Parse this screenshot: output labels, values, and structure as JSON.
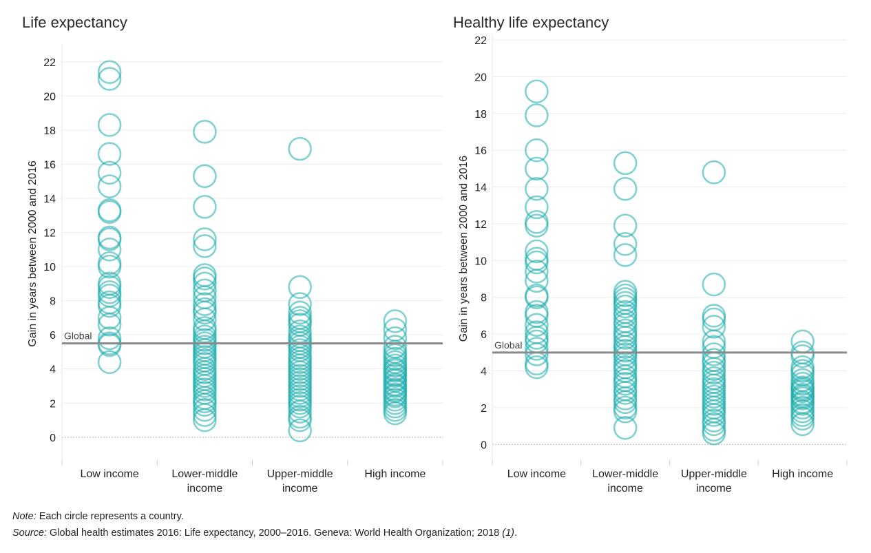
{
  "chart_data": [
    {
      "type": "scatter",
      "title": "Life expectancy",
      "ylabel": "Gain in years between 2000 and 2016",
      "xlabel": "",
      "categories": [
        "Low income",
        "Lower-middle income",
        "Upper-middle income",
        "High income"
      ],
      "ylim": [
        -1.5,
        23
      ],
      "yticks": [
        0,
        2,
        4,
        6,
        8,
        10,
        12,
        14,
        16,
        18,
        20,
        22
      ],
      "grid": true,
      "reference_line": {
        "label": "Global",
        "value": 5.5
      },
      "marker_color": "#1aacac",
      "series": [
        {
          "category": "Low income",
          "values": [
            21.4,
            21.0,
            18.3,
            16.6,
            15.5,
            14.7,
            13.3,
            13.2,
            11.7,
            11.6,
            11.0,
            10.2,
            10.0,
            9.0,
            8.8,
            8.5,
            8.3,
            7.9,
            7.7,
            7.0,
            6.6,
            5.8,
            5.5,
            5.4,
            4.4
          ]
        },
        {
          "category": "Lower-middle income",
          "values": [
            17.9,
            15.3,
            13.5,
            11.6,
            11.2,
            9.5,
            9.3,
            9.0,
            8.6,
            8.2,
            7.8,
            7.5,
            7.3,
            6.9,
            6.4,
            6.2,
            5.9,
            5.7,
            5.5,
            5.3,
            5.1,
            4.9,
            4.7,
            4.5,
            4.3,
            4.0,
            3.8,
            3.6,
            3.4,
            3.2,
            3.0,
            2.8,
            2.6,
            2.3,
            2.1,
            1.9,
            1.6,
            1.3,
            1.0
          ]
        },
        {
          "category": "Upper-middle income",
          "values": [
            16.9,
            8.8,
            7.8,
            7.3,
            7.0,
            6.8,
            6.6,
            6.2,
            5.9,
            5.7,
            5.5,
            5.3,
            5.1,
            4.8,
            4.6,
            4.4,
            4.2,
            4.0,
            3.8,
            3.6,
            3.4,
            3.2,
            3.0,
            2.8,
            2.6,
            2.4,
            2.2,
            2.0,
            1.8,
            1.5,
            1.2,
            1.0,
            0.4
          ]
        },
        {
          "category": "High income",
          "values": [
            6.8,
            6.3,
            5.8,
            5.3,
            5.0,
            4.8,
            4.6,
            4.4,
            4.2,
            4.0,
            3.9,
            3.7,
            3.6,
            3.4,
            3.3,
            3.1,
            3.0,
            2.8,
            2.7,
            2.5,
            2.4,
            2.2,
            2.0,
            1.8,
            1.6,
            1.4
          ]
        }
      ]
    },
    {
      "type": "scatter",
      "title": "Healthy life expectancy",
      "ylabel": "Gain in years between 2000 and 2016",
      "xlabel": "",
      "categories": [
        "Low income",
        "Lower-middle income",
        "Upper-middle income",
        "High income"
      ],
      "ylim": [
        -1.0,
        22.3
      ],
      "yticks": [
        0,
        2,
        4,
        6,
        8,
        10,
        12,
        14,
        16,
        18,
        20,
        22
      ],
      "grid": true,
      "reference_line": {
        "label": "Global",
        "value": 5.0
      },
      "marker_color": "#1aacac",
      "series": [
        {
          "category": "Low income",
          "values": [
            19.2,
            17.9,
            16.0,
            15.0,
            13.9,
            12.9,
            12.1,
            11.9,
            10.5,
            10.1,
            9.9,
            9.4,
            8.9,
            8.1,
            8.0,
            7.2,
            7.0,
            6.5,
            6.1,
            5.8,
            5.6,
            5.2,
            4.9,
            4.4,
            4.2
          ]
        },
        {
          "category": "Lower-middle income",
          "values": [
            15.3,
            13.9,
            11.9,
            10.9,
            10.3,
            8.3,
            8.1,
            7.9,
            7.7,
            7.5,
            7.2,
            7.0,
            6.7,
            6.5,
            6.2,
            6.0,
            5.8,
            5.5,
            5.3,
            5.1,
            4.9,
            4.7,
            4.4,
            4.2,
            4.0,
            3.7,
            3.5,
            3.3,
            3.0,
            2.8,
            2.5,
            2.3,
            2.0,
            1.8,
            0.9
          ]
        },
        {
          "category": "Upper-middle income",
          "values": [
            14.8,
            8.7,
            7.0,
            6.8,
            6.4,
            5.6,
            5.3,
            4.9,
            4.6,
            4.4,
            4.1,
            3.9,
            3.6,
            3.4,
            3.2,
            3.0,
            2.8,
            2.6,
            2.4,
            2.2,
            2.0,
            1.8,
            1.6,
            1.3,
            1.1,
            0.8,
            0.6
          ]
        },
        {
          "category": "High income",
          "values": [
            5.6,
            5.0,
            4.8,
            4.2,
            4.0,
            3.8,
            3.5,
            3.3,
            3.1,
            3.0,
            2.9,
            2.7,
            2.6,
            2.5,
            2.3,
            2.2,
            2.0,
            1.8,
            1.6,
            1.4,
            1.1
          ]
        }
      ]
    }
  ],
  "footnotes": {
    "note_label": "Note:",
    "note_text": " Each circle represents a country.",
    "source_label": "Source:",
    "source_text": " Global health estimates 2016: Life expectancy, 2000–2016. Geneva: World Health Organization; 2018 ",
    "source_ref": "(1)",
    "source_end": "."
  }
}
